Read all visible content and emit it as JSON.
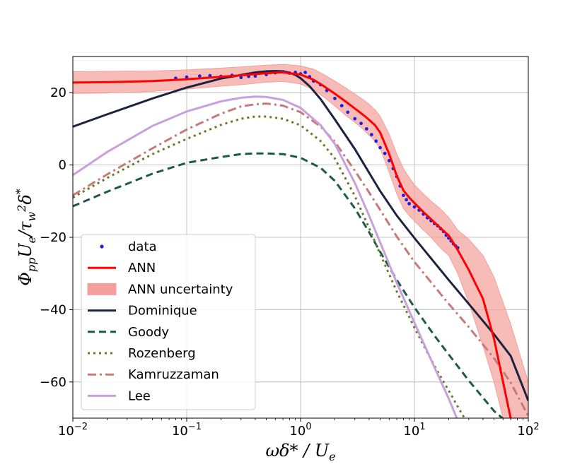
{
  "chart_data": {
    "type": "line",
    "xscale": "log",
    "xlim": [
      0.01,
      100
    ],
    "ylim": [
      -70,
      30
    ],
    "grid": true,
    "xlabel": "ωδ*/U_e",
    "ylabel": "Φ_pp U_e/τ_w^2 δ*",
    "x_ticks": [
      {
        "value": 0.01,
        "label": "10",
        "exp": "−2"
      },
      {
        "value": 0.1,
        "label": "10",
        "exp": "−1"
      },
      {
        "value": 1,
        "label": "10",
        "exp": "0"
      },
      {
        "value": 10,
        "label": "10",
        "exp": "1"
      },
      {
        "value": 100,
        "label": "10",
        "exp": "2"
      }
    ],
    "y_ticks": [
      {
        "value": 20,
        "label": "20"
      },
      {
        "value": 0,
        "label": "0"
      },
      {
        "value": -20,
        "label": "−20"
      },
      {
        "value": -40,
        "label": "−40"
      },
      {
        "value": -60,
        "label": "−60"
      }
    ],
    "legend_position": "lower-left",
    "legend": [
      {
        "key": "data",
        "label": "data"
      },
      {
        "key": "ann",
        "label": "ANN"
      },
      {
        "key": "band",
        "label": "ANN uncertainty"
      },
      {
        "key": "dominique",
        "label": "Dominique"
      },
      {
        "key": "goody",
        "label": "Goody"
      },
      {
        "key": "rozenberg",
        "label": "Rozenberg"
      },
      {
        "key": "kamruzzaman",
        "label": "Kamruzzaman"
      },
      {
        "key": "lee",
        "label": "Lee"
      }
    ],
    "colors": {
      "data": "#1f1fe0",
      "ann": "#ff0000",
      "band": "#f4a09a",
      "dominique": "#1c2340",
      "goody": "#1e5a46",
      "rozenberg": "#6b7a2a",
      "kamruzzaman": "#c87a78",
      "lee": "#c8a0dc"
    },
    "series": {
      "data": {
        "x": [
          0.08,
          0.1,
          0.13,
          0.16,
          0.2,
          0.25,
          0.3,
          0.35,
          0.4,
          0.5,
          0.6,
          0.7,
          0.8,
          0.9,
          1.0,
          1.1,
          1.2,
          1.3,
          1.5,
          1.7,
          2.0,
          2.3,
          2.6,
          3.0,
          3.4,
          3.8,
          4.2,
          4.6,
          5.0,
          5.5,
          6.0,
          6.5,
          7.0,
          7.5,
          8.0,
          8.5,
          9.0,
          10,
          11,
          12,
          13,
          14,
          15,
          16,
          17,
          18,
          19,
          20,
          21,
          22,
          23,
          24
        ],
        "y": [
          24,
          24.3,
          24.6,
          24.7,
          24.5,
          24.8,
          24.2,
          24.5,
          24.6,
          25,
          25.5,
          25.8,
          25.4,
          25.6,
          25.2,
          25.6,
          24.4,
          23.2,
          22.2,
          20.6,
          18.4,
          16.4,
          14.6,
          12.8,
          11.5,
          10,
          8.4,
          6.6,
          4.8,
          3.2,
          1.2,
          -1,
          -3.2,
          -5.8,
          -8.4,
          -9.6,
          -10.7,
          -11.6,
          -12.5,
          -13.6,
          -14.6,
          -15.4,
          -16.2,
          -16.8,
          -17.6,
          -18.4,
          -19.4,
          -20.2,
          -21,
          -21.8,
          -22.4,
          -22.9
        ]
      },
      "ann": {
        "x": [
          0.01,
          0.02,
          0.05,
          0.1,
          0.2,
          0.3,
          0.5,
          0.7,
          1.0,
          1.3,
          1.6,
          2.0,
          2.5,
          3.0,
          3.5,
          4.0,
          4.5,
          5.0,
          6.0,
          7.0,
          8.0,
          9.0,
          10,
          12,
          14,
          17,
          20,
          24,
          30,
          40,
          50,
          60,
          70
        ],
        "y": [
          22.8,
          22.9,
          23.2,
          23.7,
          24.4,
          24.8,
          25.4,
          25.6,
          25,
          23.6,
          21.8,
          19.7,
          17.5,
          15.6,
          14,
          12.5,
          11,
          9,
          3,
          -3,
          -7,
          -9,
          -10.5,
          -13,
          -15,
          -17.5,
          -19.5,
          -23.5,
          -29,
          -37,
          -48,
          -60,
          -70
        ]
      },
      "band": {
        "x": [
          0.01,
          0.02,
          0.05,
          0.1,
          0.2,
          0.3,
          0.5,
          0.7,
          1.0,
          1.3,
          1.6,
          2.0,
          2.5,
          3.0,
          3.5,
          4.0,
          4.5,
          5.0,
          6.0,
          7.0,
          8.0,
          9.0,
          10,
          12,
          14,
          17,
          20,
          24,
          30,
          40,
          50,
          60,
          70,
          80,
          100
        ],
        "upper": [
          25.8,
          25.9,
          26,
          26.3,
          26.8,
          27.1,
          27.6,
          27.8,
          27.4,
          26.5,
          25,
          23.2,
          21.3,
          19.6,
          18.2,
          16.8,
          15.3,
          13.5,
          8.5,
          3,
          -1,
          -3.5,
          -5.5,
          -8,
          -10,
          -12.2,
          -14.5,
          -18,
          -20.5,
          -25,
          -31,
          -38,
          -44,
          -50,
          -60
        ],
        "lower": [
          19.8,
          19.9,
          20.4,
          21,
          21.8,
          22.2,
          22.9,
          23.1,
          22.4,
          20.8,
          18.8,
          16.3,
          13.7,
          11.8,
          10,
          8.2,
          6.6,
          4.6,
          -2,
          -8,
          -12,
          -14,
          -15.5,
          -18,
          -20,
          -23,
          -25,
          -30,
          -38,
          -50,
          -60,
          -70,
          -70,
          -70,
          -70
        ]
      },
      "dominique": {
        "x": [
          0.01,
          0.02,
          0.05,
          0.1,
          0.2,
          0.3,
          0.4,
          0.5,
          0.6,
          0.7,
          0.8,
          0.9,
          1.0,
          1.2,
          1.5,
          2.0,
          3.0,
          5.0,
          7.0,
          10,
          20,
          30,
          50,
          70,
          100
        ],
        "y": [
          10.6,
          14,
          18.4,
          21.4,
          23.9,
          24.9,
          25.6,
          25.9,
          26,
          25.9,
          25.5,
          24.9,
          24,
          21.8,
          18.2,
          12.6,
          4.4,
          -7.2,
          -14,
          -20.2,
          -31.8,
          -38.4,
          -46.8,
          -52.8,
          -65.2
        ]
      },
      "goody": {
        "x": [
          0.01,
          0.02,
          0.05,
          0.1,
          0.2,
          0.3,
          0.4,
          0.5,
          0.7,
          1.0,
          1.5,
          2.0,
          3.0,
          4.0,
          5.0,
          7.0,
          10,
          15,
          20,
          30,
          50,
          70
        ],
        "y": [
          -11.4,
          -7.4,
          -2.4,
          0.6,
          2.2,
          3,
          3.2,
          3.2,
          3,
          2,
          -0.8,
          -4.4,
          -12,
          -18.6,
          -24,
          -31.8,
          -39.4,
          -47.2,
          -52.4,
          -59.6,
          -68,
          -72
        ]
      },
      "rozenberg": {
        "x": [
          0.01,
          0.02,
          0.05,
          0.1,
          0.2,
          0.3,
          0.4,
          0.5,
          0.7,
          1.0,
          1.5,
          2.0,
          3.0,
          4.0,
          5.0,
          7.0,
          10,
          15,
          20,
          25,
          30
        ],
        "y": [
          -9,
          -3.6,
          3,
          7.2,
          11.1,
          12.8,
          13.4,
          13.4,
          12.8,
          11,
          6.6,
          1.8,
          -8.6,
          -17.4,
          -24.6,
          -35,
          -45,
          -55.6,
          -62.4,
          -67.8,
          -72
        ]
      },
      "kamruzzaman": {
        "x": [
          0.01,
          0.02,
          0.05,
          0.1,
          0.2,
          0.3,
          0.4,
          0.5,
          0.7,
          1.0,
          1.5,
          2.0,
          3.0,
          4.0,
          5.0,
          7.0,
          10,
          20,
          30,
          50,
          70,
          100
        ],
        "y": [
          -8.4,
          -2.6,
          4.6,
          9.8,
          14.2,
          16.2,
          16.8,
          17,
          16.4,
          14.6,
          10.6,
          6.4,
          -1.6,
          -7.6,
          -12.4,
          -19.8,
          -26.8,
          -38.4,
          -44.8,
          -53.4,
          -60.2,
          -69.4
        ]
      },
      "lee": {
        "x": [
          0.01,
          0.02,
          0.05,
          0.1,
          0.2,
          0.3,
          0.4,
          0.5,
          0.7,
          1.0,
          1.5,
          2.0,
          3.0,
          4.0,
          5.0,
          7.0,
          10,
          15,
          20,
          25
        ],
        "y": [
          -2.8,
          3.6,
          10.8,
          14.8,
          17.6,
          18.6,
          18.9,
          18.8,
          18,
          15.8,
          11,
          5.8,
          -5,
          -14,
          -21.4,
          -32.6,
          -43.6,
          -56,
          -64.6,
          -72
        ]
      }
    }
  }
}
